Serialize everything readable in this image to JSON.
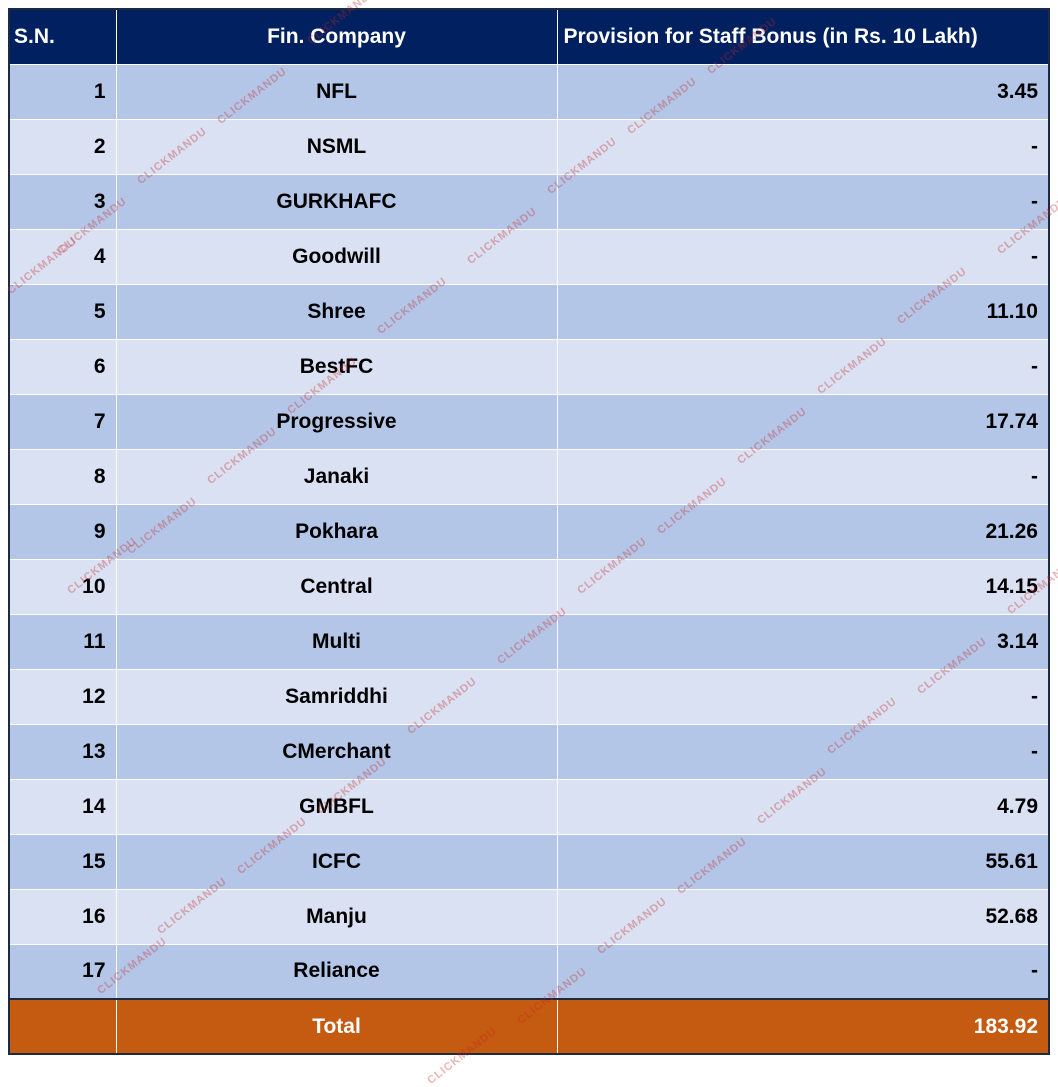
{
  "table": {
    "header": [
      "S.N.",
      "Fin. Company",
      "Provision for Staff Bonus (in Rs. 10 Lakh)"
    ],
    "rows": [
      [
        1,
        "NFL",
        "3.45"
      ],
      [
        2,
        "NSML",
        "-"
      ],
      [
        3,
        "GURKHAFC",
        "-"
      ],
      [
        4,
        "Goodwill",
        "-"
      ],
      [
        5,
        "Shree",
        "11.10"
      ],
      [
        6,
        "BestFC",
        "-"
      ],
      [
        7,
        "Progressive",
        "17.74"
      ],
      [
        8,
        "Janaki",
        "-"
      ],
      [
        9,
        "Pokhara",
        "21.26"
      ],
      [
        10,
        "Central",
        "14.15"
      ],
      [
        11,
        "Multi",
        "3.14"
      ],
      [
        12,
        "Samriddhi",
        "-"
      ],
      [
        13,
        "CMerchant",
        "-"
      ],
      [
        14,
        "GMBFL",
        "4.79"
      ],
      [
        15,
        "ICFC",
        "55.61"
      ],
      [
        16,
        "Manju",
        "52.68"
      ],
      [
        17,
        "Reliance",
        "-"
      ]
    ],
    "total": {
      "label": "Total",
      "value": "183.92"
    }
  },
  "watermark": "CLICKMANDU"
}
